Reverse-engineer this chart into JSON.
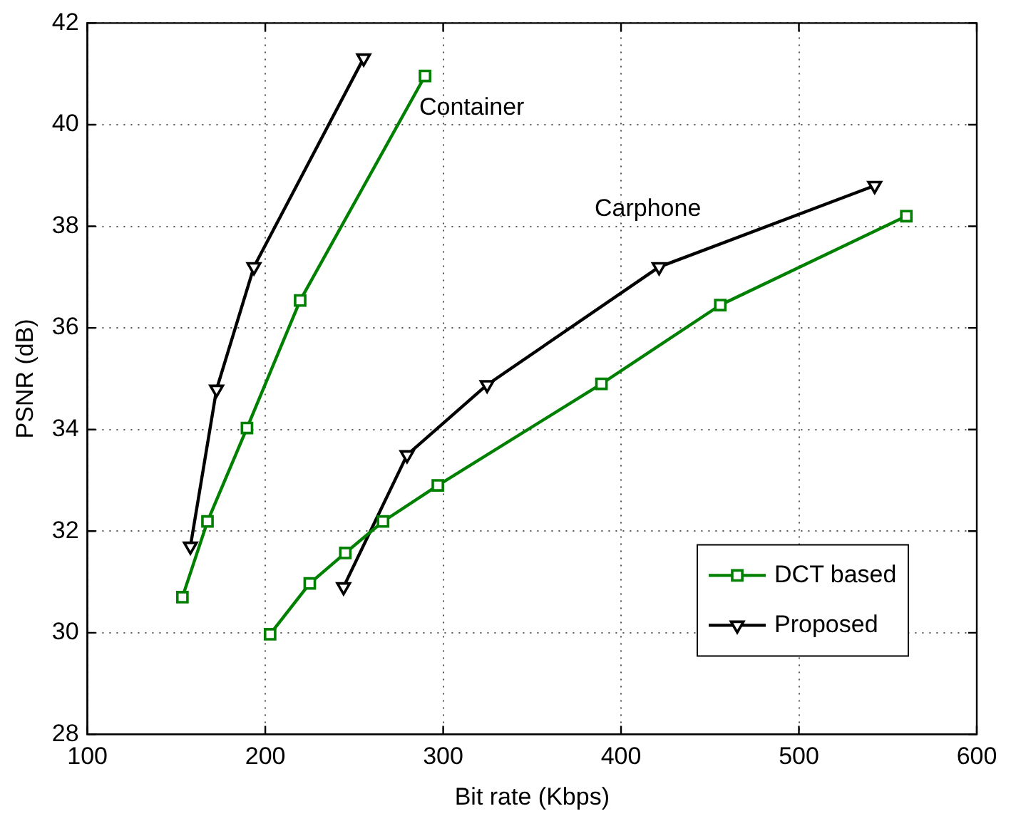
{
  "chart_data": {
    "type": "line",
    "xlabel": "Bit rate (Kbps)",
    "ylabel": "PSNR (dB)",
    "xlim": [
      100,
      600
    ],
    "xticks": [
      100,
      200,
      300,
      400,
      500,
      600
    ],
    "ylim": [
      28,
      42
    ],
    "yticks": [
      28,
      30,
      32,
      34,
      36,
      38,
      40,
      42
    ],
    "grid": true,
    "legend": "bottom right",
    "line_style": "solid",
    "series": [
      {
        "name": "DCT based",
        "color": "#008000",
        "marker": "square",
        "x": [
          153.4,
          167.5,
          189.7,
          219.6,
          289.8
        ],
        "values": [
          30.7,
          32.19,
          34.03,
          36.54,
          40.96
        ]
      },
      {
        "name": "Proposed",
        "color": "#000000",
        "marker": "triangle",
        "x": [
          157.9,
          172.6,
          193.6,
          255.3
        ],
        "values": [
          31.7,
          34.79,
          37.2,
          41.31
        ]
      },
      {
        "color": "#008000",
        "marker": "square",
        "x": [
          202.7,
          225,
          245,
          266.2,
          297,
          389,
          455.8,
          560.4
        ],
        "values": [
          29.97,
          30.97,
          31.57,
          32.19,
          32.9,
          34.9,
          36.45,
          38.2
        ]
      },
      {
        "color": "#000000",
        "marker": "triangle",
        "x": [
          244,
          279.7,
          324.7,
          421.4,
          542.6
        ],
        "values": [
          30.9,
          33.5,
          34.88,
          37.2,
          38.8
        ]
      }
    ],
    "annotations": [
      "Container",
      "Carphone"
    ]
  }
}
